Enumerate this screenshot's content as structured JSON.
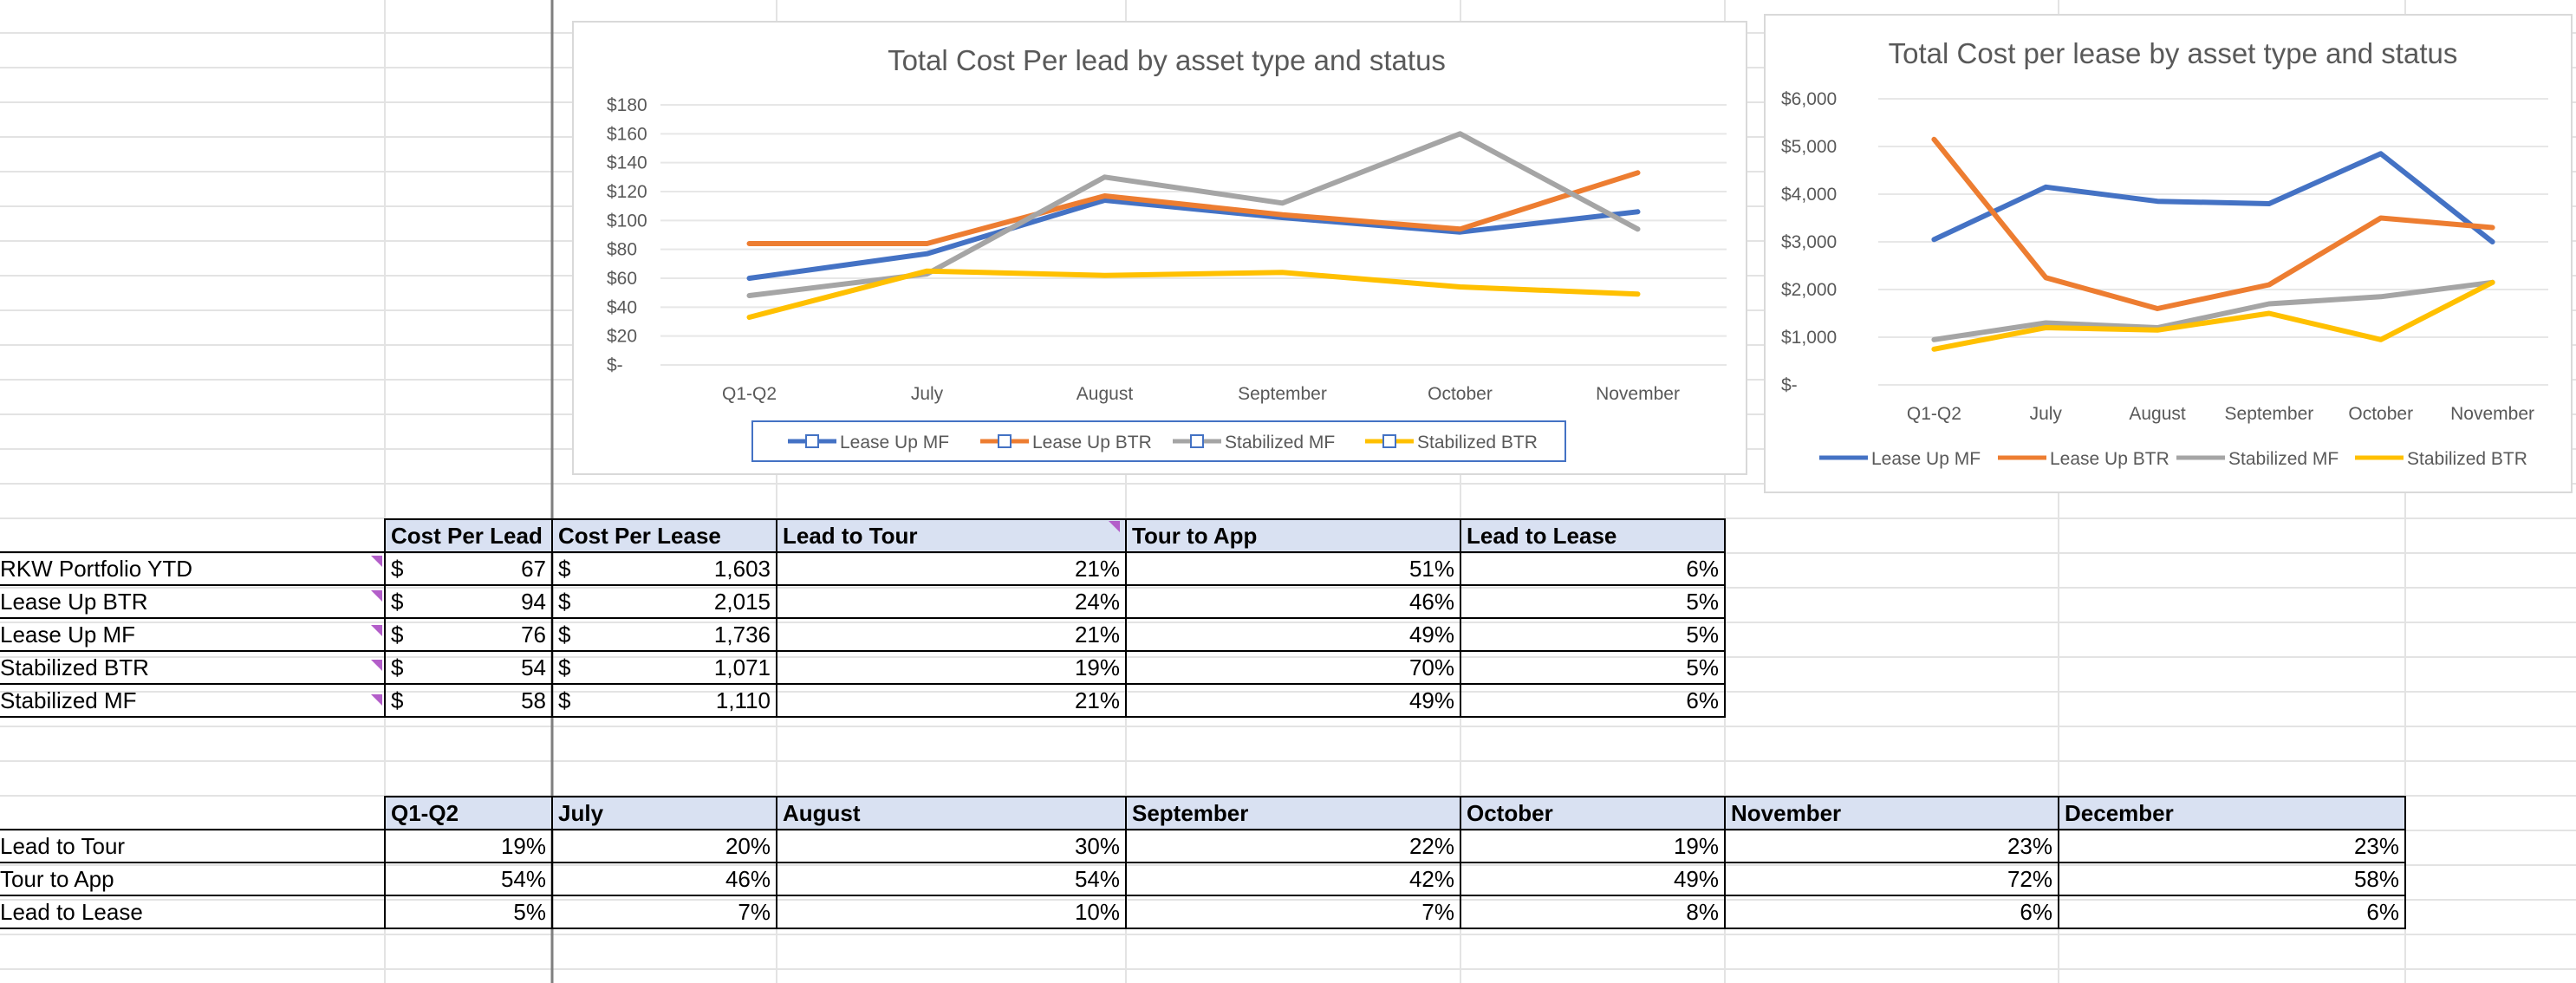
{
  "charts": [
    {
      "type": "line",
      "title": "Total Cost Per lead by asset type and status",
      "categories": [
        "Q1-Q2",
        "July",
        "August",
        "September",
        "October",
        "November"
      ],
      "y_ticks": [
        "$-",
        "$20",
        "$40",
        "$60",
        "$80",
        "$100",
        "$120",
        "$140",
        "$160",
        "$180"
      ],
      "ylim": [
        0,
        180
      ],
      "grid": true,
      "legend_position": "bottom-boxed",
      "series": [
        {
          "name": "Lease Up MF",
          "color": "#4472c4",
          "values": [
            60,
            77,
            114,
            102,
            92,
            106
          ]
        },
        {
          "name": "Lease Up BTR",
          "color": "#ed7d31",
          "values": [
            84,
            84,
            117,
            104,
            94,
            133
          ]
        },
        {
          "name": "Stabilized MF",
          "color": "#a5a5a5",
          "values": [
            48,
            63,
            130,
            112,
            160,
            94
          ]
        },
        {
          "name": "Stabilized BTR",
          "color": "#ffc000",
          "values": [
            33,
            65,
            62,
            64,
            54,
            49
          ]
        }
      ]
    },
    {
      "type": "line",
      "title": "Total Cost per lease by asset type and status",
      "categories": [
        "Q1-Q2",
        "July",
        "August",
        "September",
        "October",
        "November"
      ],
      "y_ticks": [
        "$-",
        "$1,000",
        "$2,000",
        "$3,000",
        "$4,000",
        "$5,000",
        "$6,000"
      ],
      "ylim": [
        0,
        6000
      ],
      "grid": true,
      "legend_position": "bottom",
      "series": [
        {
          "name": "Lease Up MF",
          "color": "#4472c4",
          "values": [
            3050,
            4150,
            3850,
            3800,
            4850,
            3000
          ]
        },
        {
          "name": "Lease Up BTR",
          "color": "#ed7d31",
          "values": [
            5150,
            2250,
            1600,
            2100,
            3500,
            3300
          ]
        },
        {
          "name": "Stabilized MF",
          "color": "#a5a5a5",
          "values": [
            950,
            1300,
            1200,
            1700,
            1850,
            2150
          ]
        },
        {
          "name": "Stabilized BTR",
          "color": "#ffc000",
          "values": [
            750,
            1200,
            1150,
            1500,
            950,
            2150
          ]
        }
      ]
    }
  ],
  "table1": {
    "headers": [
      "Cost Per Lead",
      "Cost Per Lease",
      "Lead to Tour",
      "Tour to App",
      "Lead to Lease"
    ],
    "currency_symbol": "$",
    "rows": [
      {
        "label": "RKW Portfolio YTD",
        "cpl": "67",
        "cplease": "1,603",
        "l2t": "21%",
        "t2a": "51%",
        "l2l": "6%"
      },
      {
        "label": "Lease Up BTR",
        "cpl": "94",
        "cplease": "2,015",
        "l2t": "24%",
        "t2a": "46%",
        "l2l": "5%"
      },
      {
        "label": "Lease Up MF",
        "cpl": "76",
        "cplease": "1,736",
        "l2t": "21%",
        "t2a": "49%",
        "l2l": "5%"
      },
      {
        "label": "Stabilized BTR",
        "cpl": "54",
        "cplease": "1,071",
        "l2t": "19%",
        "t2a": "70%",
        "l2l": "5%"
      },
      {
        "label": "Stabilized MF",
        "cpl": "58",
        "cplease": "1,110",
        "l2t": "21%",
        "t2a": "49%",
        "l2l": "6%"
      }
    ]
  },
  "table2": {
    "headers": [
      "Q1-Q2",
      "July",
      "August",
      "September",
      "October",
      "November",
      "December"
    ],
    "rows": [
      {
        "label": "Lead to Tour",
        "values": [
          "19%",
          "20%",
          "30%",
          "22%",
          "19%",
          "23%",
          "23%"
        ]
      },
      {
        "label": "Tour to App",
        "values": [
          "54%",
          "46%",
          "54%",
          "42%",
          "49%",
          "72%",
          "58%"
        ]
      },
      {
        "label": "Lead to Lease",
        "values": [
          "5%",
          "7%",
          "10%",
          "7%",
          "8%",
          "6%",
          "6%"
        ]
      }
    ]
  },
  "colors": {
    "header_fill": "#d9e1f2",
    "comment_marker": "#b35ec9",
    "gridline": "#e7e7e7",
    "freeze_line": "#7f7f7f"
  }
}
